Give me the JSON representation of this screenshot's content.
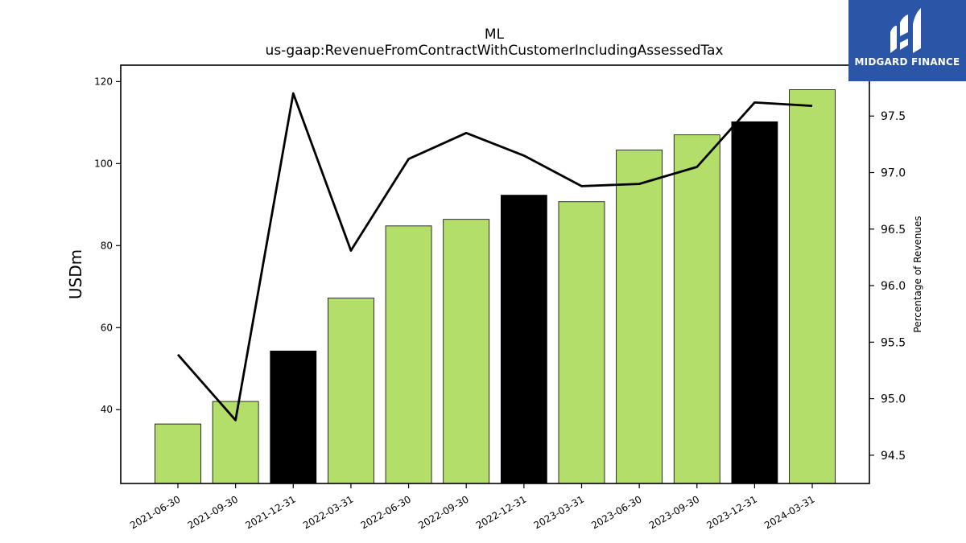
{
  "chart_data": {
    "type": "bar",
    "title": "ML",
    "subtitle": "us-gaap:RevenueFromContractWithCustomerIncludingAssessedTax",
    "ylabel": "USDm",
    "y2label": "Percentage of Revenues",
    "categories": [
      "2021-06-30",
      "2021-09-30",
      "2021-12-31",
      "2022-03-31",
      "2022-06-30",
      "2022-09-30",
      "2022-12-31",
      "2023-03-31",
      "2023-06-30",
      "2023-09-30",
      "2023-12-31",
      "2024-03-31"
    ],
    "series": [
      {
        "type": "bar",
        "axis": "left",
        "values": [
          36.5,
          42.0,
          54.3,
          67.2,
          84.8,
          86.4,
          92.3,
          90.7,
          103.3,
          107.0,
          110.2,
          118.0
        ],
        "colors": [
          "#b3de69",
          "#b3de69",
          "#000000",
          "#b3de69",
          "#b3de69",
          "#b3de69",
          "#000000",
          "#b3de69",
          "#b3de69",
          "#b3de69",
          "#000000",
          "#b3de69"
        ]
      },
      {
        "type": "line",
        "axis": "right",
        "color": "#000000",
        "values": [
          95.39,
          94.81,
          97.7,
          96.31,
          97.12,
          97.35,
          97.15,
          96.88,
          96.9,
          97.05,
          97.62,
          97.59
        ]
      }
    ],
    "ylim": [
      22,
      124
    ],
    "yticks": [
      40,
      60,
      80,
      100,
      120
    ],
    "y2lim": [
      94.25,
      97.95
    ],
    "y2ticks": [
      "94.5",
      "95.0",
      "95.5",
      "96.0",
      "96.5",
      "97.0",
      "97.5"
    ],
    "grid": false,
    "legend": "none"
  },
  "logo": {
    "text": "MIDGARD FINANCE",
    "color": "#2b56a8"
  }
}
